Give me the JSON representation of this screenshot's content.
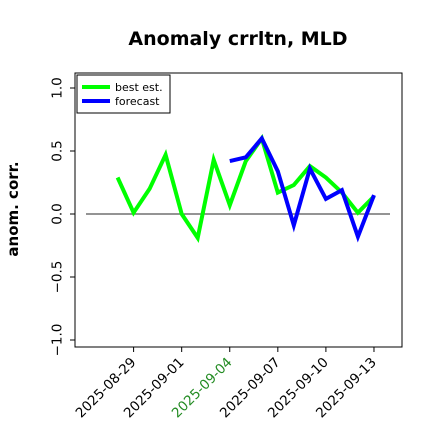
{
  "chart_data": {
    "type": "line",
    "title": "Anomaly crrltn, MLD",
    "xlabel": "",
    "ylabel": "anom. corr.",
    "ylim": [
      -1.0,
      1.0
    ],
    "yticks": [
      "−1.0",
      "−0.5",
      "0.0",
      "0.5",
      "1.0"
    ],
    "ytick_values": [
      -1.0,
      -0.5,
      0.0,
      0.5,
      1.0
    ],
    "xlim": [
      "2025-08-25",
      "2025-09-14"
    ],
    "xticks": [
      "2025-08-29",
      "2025-09-01",
      "2025-09-04",
      "2025-09-07",
      "2025-09-10",
      "2025-09-13"
    ],
    "xtick_colors": [
      "#000000",
      "#000000",
      "#228B22",
      "#000000",
      "#000000",
      "#000000"
    ],
    "reference_line": 0.0,
    "legend_position": "top-left",
    "series": [
      {
        "name": "best est.",
        "color": "#00ff00",
        "x": [
          "2025-08-28",
          "2025-08-29",
          "2025-08-30",
          "2025-08-31",
          "2025-09-01",
          "2025-09-02",
          "2025-09-03",
          "2025-09-04",
          "2025-09-05",
          "2025-09-06",
          "2025-09-07",
          "2025-09-08",
          "2025-09-09",
          "2025-09-10",
          "2025-09-11",
          "2025-09-12",
          "2025-09-13"
        ],
        "values": [
          0.29,
          0.01,
          0.2,
          0.47,
          0.0,
          -0.19,
          0.43,
          0.07,
          0.42,
          0.6,
          0.17,
          0.23,
          0.38,
          0.29,
          0.17,
          0.01,
          0.14
        ]
      },
      {
        "name": "forecast",
        "color": "#0000ff",
        "x": [
          "2025-09-04",
          "2025-09-05",
          "2025-09-06",
          "2025-09-07",
          "2025-09-08",
          "2025-09-09",
          "2025-09-10",
          "2025-09-11",
          "2025-09-12",
          "2025-09-13"
        ],
        "values": [
          0.42,
          0.45,
          0.6,
          0.34,
          -0.09,
          0.36,
          0.12,
          0.19,
          -0.18,
          0.15
        ]
      }
    ]
  }
}
